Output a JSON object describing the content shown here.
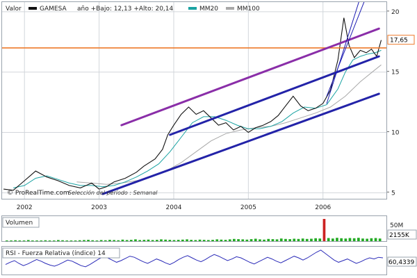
{
  "legend": {
    "label": "Valor",
    "ticker": "GAMESA",
    "range_text": "año +Bajo: 12,13 +Alto: 20,14",
    "ma_fast": "MM20",
    "ma_slow": "MM100",
    "ticker_color": "#111111",
    "ma_fast_color": "#1aa3a3",
    "ma_slow_color": "#a8a8a8"
  },
  "attribution": {
    "brand": "© ProRealTime.com",
    "period": "Selección del período : Semanal"
  },
  "chart_data": {
    "type": "line",
    "title": "",
    "y_ticks": [
      "5",
      "10",
      "15",
      "20"
    ],
    "x_ticks": [
      "2002",
      "2003",
      "2004",
      "2005",
      "2006"
    ],
    "ylim": [
      4.5,
      20.8
    ],
    "xlim": [
      2001.7,
      2006.85
    ],
    "grid": true,
    "last_value_label": "17,65",
    "last_value": 17.65,
    "price_series": {
      "name": "GAMESA",
      "color": "#111111",
      "x": [
        2001.72,
        2001.85,
        2002.0,
        2002.15,
        2002.3,
        2002.45,
        2002.6,
        2002.75,
        2002.9,
        2003.0,
        2003.1,
        2003.2,
        2003.35,
        2003.5,
        2003.6,
        2003.75,
        2003.85,
        2003.92,
        2004.0,
        2004.1,
        2004.2,
        2004.3,
        2004.4,
        2004.5,
        2004.6,
        2004.7,
        2004.8,
        2004.9,
        2005.0,
        2005.1,
        2005.2,
        2005.3,
        2005.4,
        2005.5,
        2005.6,
        2005.7,
        2005.8,
        2005.9,
        2006.0,
        2006.1,
        2006.2,
        2006.28,
        2006.35,
        2006.42,
        2006.5,
        2006.58,
        2006.65,
        2006.72,
        2006.78
      ],
      "y": [
        5.3,
        5.2,
        6.0,
        6.8,
        6.3,
        6.0,
        5.6,
        5.4,
        5.8,
        5.3,
        5.5,
        5.9,
        6.2,
        6.7,
        7.2,
        7.8,
        8.6,
        9.8,
        10.6,
        11.5,
        12.1,
        11.5,
        11.8,
        11.2,
        10.6,
        10.8,
        10.2,
        10.5,
        10.0,
        10.4,
        10.6,
        10.9,
        11.4,
        12.2,
        13.0,
        12.2,
        11.8,
        12.0,
        12.4,
        13.5,
        16.0,
        19.5,
        17.2,
        16.2,
        16.8,
        16.6,
        16.9,
        16.3,
        17.65
      ]
    },
    "ma20": {
      "name": "MM20",
      "color": "#1aa3a3",
      "x": [
        2001.85,
        2002.0,
        2002.15,
        2002.3,
        2002.45,
        2002.6,
        2002.75,
        2002.9,
        2003.05,
        2003.2,
        2003.35,
        2003.5,
        2003.65,
        2003.8,
        2003.95,
        2004.1,
        2004.25,
        2004.4,
        2004.55,
        2004.7,
        2004.85,
        2005.0,
        2005.15,
        2005.3,
        2005.45,
        2005.6,
        2005.75,
        2005.9,
        2006.05,
        2006.2,
        2006.3,
        2006.4,
        2006.5,
        2006.6,
        2006.7,
        2006.78
      ],
      "y": [
        5.4,
        5.6,
        6.2,
        6.4,
        6.1,
        5.8,
        5.6,
        5.6,
        5.5,
        5.6,
        5.9,
        6.3,
        6.8,
        7.4,
        8.4,
        9.6,
        10.8,
        11.3,
        11.3,
        11.0,
        10.6,
        10.3,
        10.3,
        10.5,
        10.9,
        11.6,
        12.1,
        12.0,
        12.3,
        13.6,
        15.0,
        16.0,
        16.3,
        16.5,
        16.6,
        16.8
      ]
    },
    "ma100": {
      "name": "MM100",
      "color": "#a8a8a8",
      "x": [
        2002.7,
        2002.9,
        2003.1,
        2003.3,
        2003.5,
        2003.7,
        2003.9,
        2004.1,
        2004.3,
        2004.5,
        2004.7,
        2004.9,
        2005.1,
        2005.3,
        2005.5,
        2005.7,
        2005.9,
        2006.1,
        2006.3,
        2006.5,
        2006.7,
        2006.78
      ],
      "y": [
        5.9,
        5.8,
        5.7,
        5.8,
        6.0,
        6.3,
        6.8,
        7.5,
        8.4,
        9.3,
        9.9,
        10.2,
        10.4,
        10.5,
        10.8,
        11.2,
        11.6,
        12.1,
        13.0,
        14.2,
        15.2,
        15.6
      ]
    },
    "trendlines": [
      {
        "name": "",
        "color": "#8a2ea8",
        "x": [
          2003.3,
          2006.75
        ],
        "y": [
          10.6,
          18.6
        ]
      },
      {
        "name": "",
        "color": "#2323a8",
        "x": [
          2003.95,
          2006.75
        ],
        "y": [
          9.8,
          16.3
        ]
      },
      {
        "name": "",
        "color": "#2323a8",
        "x": [
          2003.05,
          2006.75
        ],
        "y": [
          4.9,
          13.2
        ]
      },
      {
        "name": "",
        "color": "#1818b0",
        "x": [
          2006.05,
          2006.55
        ],
        "y": [
          13.0,
          20.8
        ]
      },
      {
        "name": "",
        "color": "#1818b0",
        "x": [
          2006.05,
          2006.48
        ],
        "y": [
          12.4,
          20.8
        ]
      }
    ],
    "horizontal_line": {
      "name": "",
      "color": "#ee7a2a",
      "y": 17.0
    }
  },
  "volume": {
    "label": "Volumen",
    "scale_label": "50M",
    "value_label": "2155K",
    "color": "#22aa22",
    "spike_color": "#cc2222",
    "values": [
      0.03,
      0.02,
      0.04,
      0.03,
      0.02,
      0.05,
      0.03,
      0.02,
      0.03,
      0.04,
      0.02,
      0.03,
      0.05,
      0.04,
      0.03,
      0.02,
      0.03,
      0.04,
      0.05,
      0.06,
      0.04,
      0.03,
      0.05,
      0.04,
      0.06,
      0.05,
      0.04,
      0.07,
      0.05,
      0.06,
      0.08,
      0.05,
      0.06,
      0.07,
      0.05,
      0.06,
      0.08,
      0.07,
      0.06,
      0.05,
      0.06,
      0.07,
      0.08,
      0.06,
      0.05,
      0.07,
      0.06,
      0.05,
      0.06,
      0.08,
      0.07,
      0.06,
      0.08,
      0.1,
      0.09,
      0.08,
      0.07,
      0.09,
      0.11,
      0.08,
      0.07,
      0.1,
      0.09,
      0.08,
      0.12,
      0.1,
      0.09,
      0.11,
      0.1,
      0.12,
      0.1,
      0.11,
      0.13,
      0.12,
      1.0,
      0.14,
      0.12,
      0.15,
      0.13,
      0.12,
      0.14,
      0.13,
      0.15,
      0.12,
      0.11,
      0.13,
      0.14,
      0.12
    ]
  },
  "rsi": {
    "label": "RSI - Fuerza Relativa (índice) 14",
    "value_label": "60,4339",
    "color": "#2a2ab8",
    "values": [
      48,
      52,
      55,
      50,
      46,
      49,
      53,
      57,
      54,
      50,
      47,
      45,
      48,
      52,
      56,
      54,
      50,
      46,
      44,
      48,
      53,
      58,
      62,
      60,
      56,
      52,
      55,
      59,
      63,
      61,
      57,
      53,
      50,
      54,
      58,
      55,
      51,
      48,
      52,
      57,
      61,
      64,
      60,
      56,
      53,
      57,
      62,
      66,
      63,
      59,
      55,
      58,
      62,
      60,
      56,
      52,
      49,
      53,
      57,
      61,
      58,
      54,
      51,
      55,
      59,
      63,
      60,
      56,
      60,
      65,
      70,
      74,
      68,
      62,
      56,
      52,
      55,
      58,
      54,
      50,
      53,
      57,
      60,
      58,
      61,
      60
    ]
  }
}
